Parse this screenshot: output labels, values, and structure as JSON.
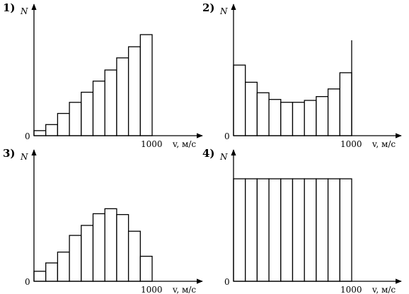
{
  "chart_data": [
    {
      "type": "bar",
      "number_label": "1)",
      "ylabel": "N",
      "xlabel": "v, м/с",
      "origin_label": "0",
      "x_tick_label": "1000",
      "x_start": 0,
      "bin_width": 100,
      "values": [
        0.05,
        0.11,
        0.22,
        0.33,
        0.43,
        0.54,
        0.65,
        0.77,
        0.88,
        1.0
      ],
      "extra_vertical": null
    },
    {
      "type": "bar",
      "number_label": "2)",
      "ylabel": "N",
      "xlabel": "v, м/с",
      "origin_label": "0",
      "x_tick_label": "1000",
      "x_start": 0,
      "bin_width": 100,
      "values": [
        0.74,
        0.56,
        0.45,
        0.38,
        0.35,
        0.35,
        0.37,
        0.41,
        0.49,
        0.66
      ],
      "extra_vertical": 1.0
    },
    {
      "type": "bar",
      "number_label": "3)",
      "ylabel": "N",
      "xlabel": "v, м/с",
      "origin_label": "0",
      "x_tick_label": "1000",
      "x_start": 0,
      "bin_width": 100,
      "values": [
        0.12,
        0.22,
        0.35,
        0.55,
        0.67,
        0.81,
        0.87,
        0.8,
        0.6,
        0.3
      ],
      "extra_vertical": null
    },
    {
      "type": "bar",
      "number_label": "4)",
      "ylabel": "N",
      "xlabel": "v, м/с",
      "origin_label": "0",
      "x_tick_label": "1000",
      "x_start": 0,
      "bin_width": 100,
      "values": [
        1,
        1,
        1,
        1,
        1,
        1,
        1,
        1,
        1,
        1
      ],
      "extra_vertical": null
    }
  ]
}
